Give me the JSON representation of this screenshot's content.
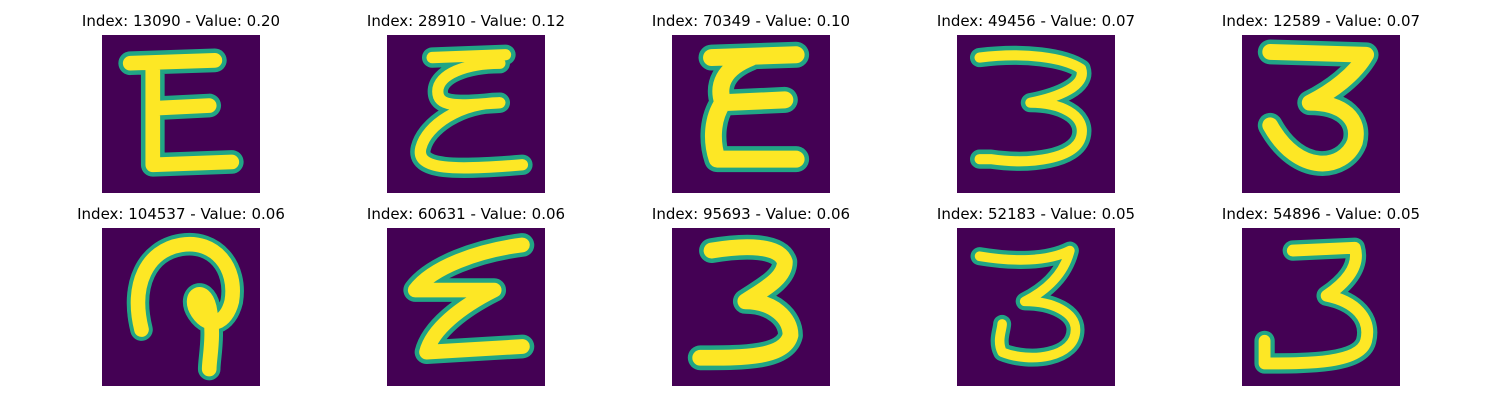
{
  "panels": [
    {
      "title": "Index: 13090 - Value: 0.20",
      "glyph": "E"
    },
    {
      "title": "Index: 28910 - Value: 0.12",
      "glyph": "epsilon-loop"
    },
    {
      "title": "Index: 70349 - Value: 0.10",
      "glyph": "epsilon-bold"
    },
    {
      "title": "Index: 49456 - Value: 0.07",
      "glyph": "3-wide"
    },
    {
      "title": "Index: 12589 - Value: 0.07",
      "glyph": "3-bold"
    },
    {
      "title": "Index: 104537 - Value: 0.06",
      "glyph": "loop-hook"
    },
    {
      "title": "Index: 60631 - Value: 0.06",
      "glyph": "epsilon-slant"
    },
    {
      "title": "Index: 95693 - Value: 0.06",
      "glyph": "3-thick"
    },
    {
      "title": "Index: 52183 - Value: 0.05",
      "glyph": "3-thin"
    },
    {
      "title": "Index: 54896 - Value: 0.05",
      "glyph": "3-reverse-j"
    }
  ],
  "colors": {
    "background": "#440154",
    "stroke": "#fde725",
    "edge": "#21a585"
  }
}
